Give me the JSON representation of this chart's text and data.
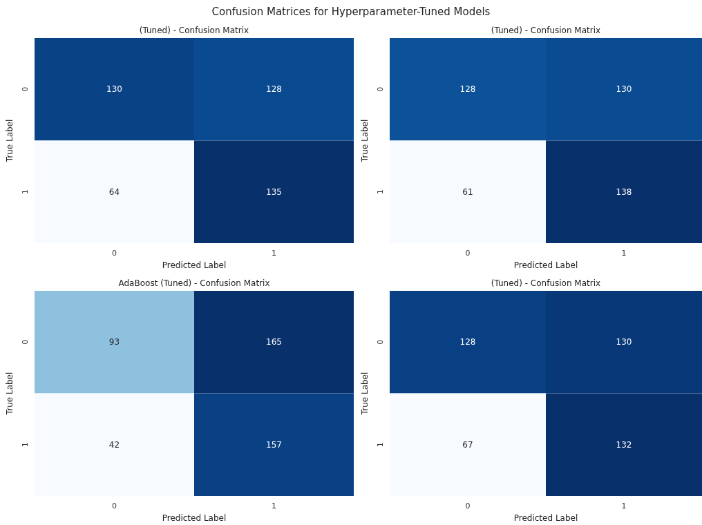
{
  "chart_data": [
    {
      "type": "heatmap",
      "title": "(Tuned) - Confusion Matrix",
      "xlabel": "Predicted Label",
      "ylabel": "True Label",
      "categories": [
        "0",
        "1"
      ],
      "y_categories": [
        "0",
        "1"
      ],
      "cells": [
        [
          130,
          128
        ],
        [
          64,
          135
        ]
      ],
      "data_labels": true,
      "annotations": [
        "Confusion Matrices for Hyperparameter-Tuned Models"
      ]
    },
    {
      "type": "heatmap",
      "title": "(Tuned) - Confusion Matrix",
      "xlabel": "Predicted Label",
      "ylabel": "True Label",
      "categories": [
        "0",
        "1"
      ],
      "y_categories": [
        "0",
        "1"
      ],
      "cells": [
        [
          128,
          130
        ],
        [
          61,
          138
        ]
      ],
      "data_labels": true
    },
    {
      "type": "heatmap",
      "title": "AdaBoost (Tuned) - Confusion Matrix",
      "xlabel": "Predicted Label",
      "ylabel": "True Label",
      "categories": [
        "0",
        "1"
      ],
      "y_categories": [
        "0",
        "1"
      ],
      "cells": [
        [
          93,
          165
        ],
        [
          42,
          157
        ]
      ],
      "data_labels": true
    },
    {
      "type": "heatmap",
      "title": "(Tuned) - Confusion Matrix",
      "xlabel": "Predicted Label",
      "ylabel": "True Label",
      "categories": [
        "0",
        "1"
      ],
      "y_categories": [
        "0",
        "1"
      ],
      "cells": [
        [
          128,
          130
        ],
        [
          67,
          132
        ]
      ],
      "data_labels": true
    }
  ]
}
